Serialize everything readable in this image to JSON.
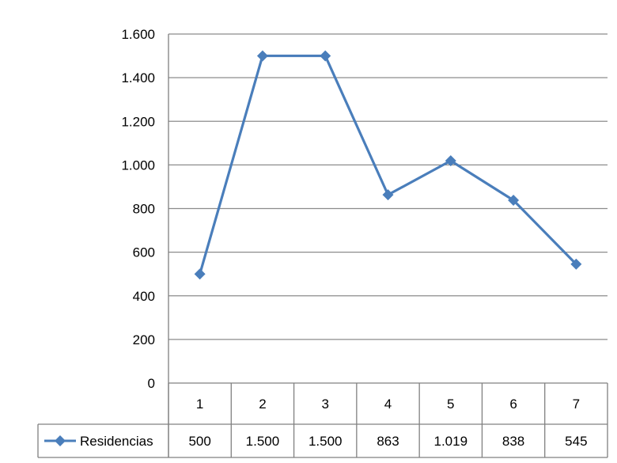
{
  "chart_data": {
    "type": "line",
    "title": "",
    "xlabel": "",
    "ylabel": "",
    "categories": [
      "1",
      "2",
      "3",
      "4",
      "5",
      "6",
      "7"
    ],
    "series": [
      {
        "name": "Residencias",
        "values": [
          500,
          1500,
          1500,
          863,
          1019,
          838,
          545
        ],
        "value_labels": [
          "500",
          "1.500",
          "1.500",
          "863",
          "1.019",
          "838",
          "545"
        ],
        "color": "#4A7EBB",
        "marker": "diamond"
      }
    ],
    "ylim": [
      0,
      1600
    ],
    "yticks": [
      0,
      200,
      400,
      600,
      800,
      1000,
      1200,
      1400,
      1600
    ],
    "ytick_labels": [
      "0",
      "200",
      "400",
      "600",
      "800",
      "1.000",
      "1.200",
      "1.400",
      "1.600"
    ],
    "grid": true,
    "legend": "data-table",
    "gridline_color": "#8c8c8c",
    "axis_color": "#808080"
  }
}
